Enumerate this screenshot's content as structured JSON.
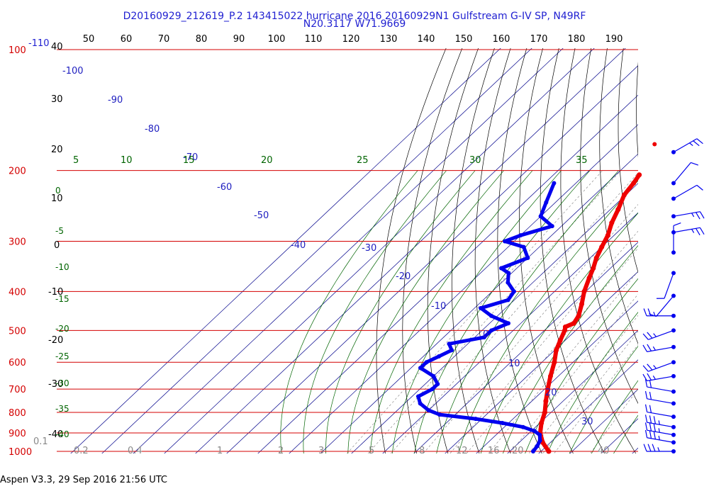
{
  "title_line1": "D20160929_212619_P.2 143415022 hurricane 2016 20160929N1 Gulfstream G-IV SP, N49RF",
  "title_line2": "N20.3117 W71.9669",
  "footer": "Aspen V3.3, 29 Sep 2016  21:56 UTC",
  "colors": {
    "isobar": "#d40000",
    "pressure_label": "#d40000",
    "dewpoint": "#0000ee",
    "temperature": "#ee0000",
    "mixing_ratio": "#006400",
    "dry_adiabat": "#000000",
    "isotherm": "#00008b",
    "isotherm_label": "#2020c0",
    "wind_barb": "#0000ee"
  },
  "chart_data": {
    "type": "skew-t",
    "pressure_levels_hpa": [
      100,
      200,
      300,
      400,
      500,
      600,
      700,
      800,
      900,
      1000
    ],
    "top_labels": [
      "50",
      "60",
      "70",
      "80",
      "90",
      "100",
      "110",
      "120",
      "130",
      "140",
      "150",
      "160",
      "170",
      "180",
      "190"
    ],
    "left_black_labels": [
      "40",
      "30",
      "20",
      "10",
      "0",
      "-10",
      "-20",
      "-30",
      "-40"
    ],
    "left_green_labels": [
      "0",
      "-5",
      "-10",
      "-15",
      "-20",
      "-25",
      "-30",
      "-35",
      "-40"
    ],
    "left_blue_label": "-110",
    "isotherm_labels": [
      "-100",
      "-90",
      "-80",
      "-70",
      "-60",
      "-50",
      "-40",
      "-30",
      "-20",
      "-10",
      "0",
      "10",
      "20",
      "30"
    ],
    "theta_e_labels": [
      "5",
      "10",
      "15",
      "20",
      "25",
      "30",
      "35"
    ],
    "mixing_ratio_labels": [
      "0.1",
      "0.2",
      "0.4",
      "1",
      "2",
      "3",
      "5",
      "8",
      "12",
      "16",
      "20",
      "40"
    ],
    "temperature_profile": [
      {
        "p": 205,
        "t": -42.5
      },
      {
        "p": 215,
        "t": -41.5
      },
      {
        "p": 230,
        "t": -40.5
      },
      {
        "p": 250,
        "t": -37.5
      },
      {
        "p": 270,
        "t": -35.0
      },
      {
        "p": 290,
        "t": -32.0
      },
      {
        "p": 310,
        "t": -30.0
      },
      {
        "p": 330,
        "t": -28.0
      },
      {
        "p": 350,
        "t": -25.5
      },
      {
        "p": 370,
        "t": -23.5
      },
      {
        "p": 400,
        "t": -20.5
      },
      {
        "p": 430,
        "t": -17.0
      },
      {
        "p": 460,
        "t": -14.0
      },
      {
        "p": 480,
        "t": -13.0
      },
      {
        "p": 490,
        "t": -14.5
      },
      {
        "p": 500,
        "t": -13.5
      },
      {
        "p": 530,
        "t": -11.5
      },
      {
        "p": 560,
        "t": -9.5
      },
      {
        "p": 600,
        "t": -6.0
      },
      {
        "p": 650,
        "t": -2.5
      },
      {
        "p": 700,
        "t": 1.0
      },
      {
        "p": 750,
        "t": 4.5
      },
      {
        "p": 800,
        "t": 8.0
      },
      {
        "p": 850,
        "t": 10.5
      },
      {
        "p": 900,
        "t": 13.5
      },
      {
        "p": 950,
        "t": 17.5
      },
      {
        "p": 1000,
        "t": 22.5
      }
    ],
    "temperature_isolated_point": {
      "p": 172,
      "t": -48.0
    },
    "dewpoint_profile": [
      {
        "p": 215,
        "td": -67
      },
      {
        "p": 240,
        "td": -63
      },
      {
        "p": 260,
        "td": -60
      },
      {
        "p": 275,
        "td": -53
      },
      {
        "p": 290,
        "td": -60
      },
      {
        "p": 300,
        "td": -63
      },
      {
        "p": 310,
        "td": -55
      },
      {
        "p": 330,
        "td": -50
      },
      {
        "p": 350,
        "td": -55
      },
      {
        "p": 360,
        "td": -51
      },
      {
        "p": 380,
        "td": -48
      },
      {
        "p": 400,
        "td": -43
      },
      {
        "p": 420,
        "td": -42
      },
      {
        "p": 440,
        "td": -48
      },
      {
        "p": 460,
        "td": -42
      },
      {
        "p": 480,
        "td": -34
      },
      {
        "p": 500,
        "td": -37
      },
      {
        "p": 520,
        "td": -37
      },
      {
        "p": 540,
        "td": -46
      },
      {
        "p": 560,
        "td": -43
      },
      {
        "p": 580,
        "td": -45
      },
      {
        "p": 600,
        "td": -47
      },
      {
        "p": 620,
        "td": -47
      },
      {
        "p": 650,
        "td": -40
      },
      {
        "p": 680,
        "td": -36
      },
      {
        "p": 700,
        "td": -36
      },
      {
        "p": 730,
        "td": -38
      },
      {
        "p": 760,
        "td": -35
      },
      {
        "p": 790,
        "td": -30
      },
      {
        "p": 810,
        "td": -25
      },
      {
        "p": 830,
        "td": -12
      },
      {
        "p": 850,
        "td": -2
      },
      {
        "p": 870,
        "td": 6
      },
      {
        "p": 890,
        "td": 11
      },
      {
        "p": 910,
        "td": 14
      },
      {
        "p": 940,
        "td": 16
      },
      {
        "p": 970,
        "td": 17
      },
      {
        "p": 1000,
        "td": 17.5
      }
    ],
    "wind_barbs": [
      {
        "p": 180,
        "dir": 60,
        "spd": 15
      },
      {
        "p": 215,
        "dir": 40,
        "spd": 10
      },
      {
        "p": 235,
        "dir": 60,
        "spd": 10
      },
      {
        "p": 260,
        "dir": 80,
        "spd": 15
      },
      {
        "p": 285,
        "dir": 80,
        "spd": 15
      },
      {
        "p": 320,
        "dir": 0,
        "spd": 10
      },
      {
        "p": 360,
        "dir": 200,
        "spd": 10
      },
      {
        "p": 410,
        "dir": 220,
        "spd": 10
      },
      {
        "p": 460,
        "dir": 270,
        "spd": 15
      },
      {
        "p": 500,
        "dir": 250,
        "spd": 15
      },
      {
        "p": 550,
        "dir": 260,
        "spd": 15
      },
      {
        "p": 600,
        "dir": 250,
        "spd": 15
      },
      {
        "p": 650,
        "dir": 260,
        "spd": 15
      },
      {
        "p": 710,
        "dir": 280,
        "spd": 20
      },
      {
        "p": 760,
        "dir": 280,
        "spd": 20
      },
      {
        "p": 820,
        "dir": 280,
        "spd": 20
      },
      {
        "p": 870,
        "dir": 280,
        "spd": 25
      },
      {
        "p": 910,
        "dir": 280,
        "spd": 25
      },
      {
        "p": 950,
        "dir": 280,
        "spd": 25
      },
      {
        "p": 1000,
        "dir": 270,
        "spd": 25
      }
    ]
  }
}
